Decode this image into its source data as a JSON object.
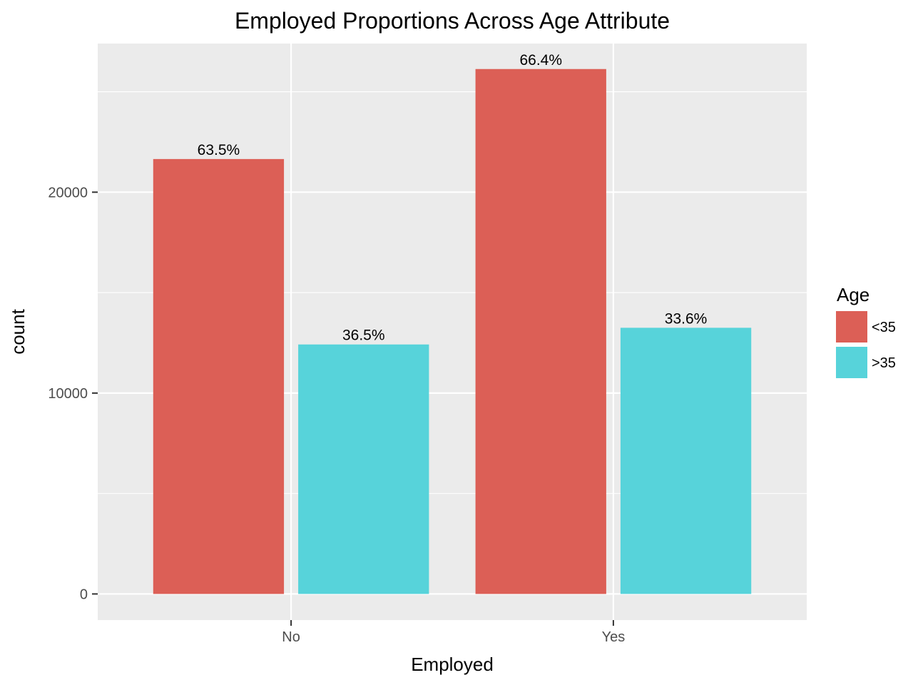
{
  "chart_data": {
    "type": "bar",
    "title": "Employed Proportions Across Age Attribute",
    "xlabel": "Employed",
    "ylabel": "count",
    "categories": [
      "No",
      "Yes"
    ],
    "series": [
      {
        "name": "<35",
        "color": "#dc5f56",
        "values": [
          21650,
          26130
        ],
        "labels": [
          "63.5%",
          "66.4%"
        ]
      },
      {
        "name": ">35",
        "color": "#57d3da",
        "values": [
          12420,
          13250
        ],
        "labels": [
          "36.5%",
          "33.6%"
        ]
      }
    ],
    "ylim": [
      -1300,
      27400
    ],
    "yticks": [
      0,
      10000,
      20000
    ],
    "ytick_labels": [
      "0",
      "10000",
      "20000"
    ],
    "grid": true,
    "legend": {
      "title": "Age",
      "position": "right"
    },
    "panel_background": "#ebebeb",
    "grid_color": "#ffffff"
  }
}
